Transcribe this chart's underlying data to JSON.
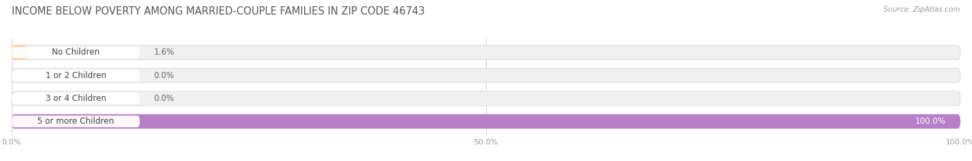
{
  "title": "INCOME BELOW POVERTY AMONG MARRIED-COUPLE FAMILIES IN ZIP CODE 46743",
  "source": "Source: ZipAtlas.com",
  "categories": [
    "No Children",
    "1 or 2 Children",
    "3 or 4 Children",
    "5 or more Children"
  ],
  "values": [
    1.6,
    0.0,
    0.0,
    100.0
  ],
  "bar_colors": [
    "#f8c98c",
    "#f2a8a8",
    "#aec8e8",
    "#b87ec8"
  ],
  "track_color": "#f0f0f0",
  "track_border_color": "#dedede",
  "background_color": "#ffffff",
  "xlim": [
    0,
    100
  ],
  "xticks": [
    0,
    50,
    100
  ],
  "xticklabels": [
    "0.0%",
    "50.0%",
    "100.0%"
  ],
  "title_fontsize": 10.5,
  "label_fontsize": 8.5,
  "value_fontsize": 8.5,
  "bar_height": 0.62,
  "figsize": [
    14.06,
    2.33
  ]
}
